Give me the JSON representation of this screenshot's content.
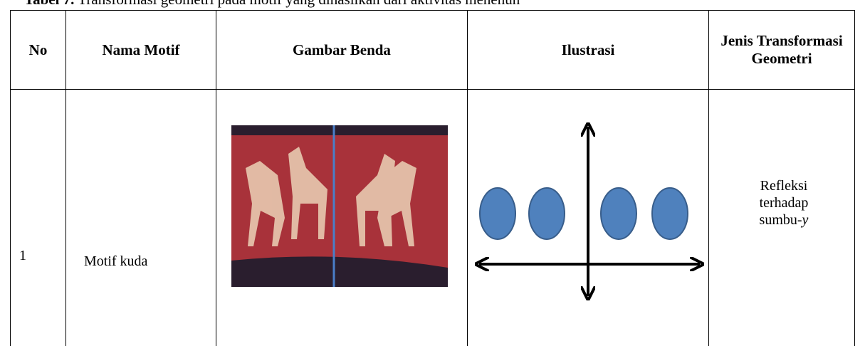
{
  "caption": {
    "label": "Tabel 7.",
    "text": "Transformasi geometri pada motif yang dihasilkan dari aktivitas menenun"
  },
  "table": {
    "headers": [
      "No",
      "Nama Motif",
      "Gambar Benda",
      "Ilustrasi",
      "Jenis Transformasi Geometri"
    ],
    "rows": [
      {
        "no": "1",
        "nama": "Motif kuda",
        "jenis": {
          "text": "Refleksi terhadap sumbu-",
          "variable": "y"
        }
      }
    ]
  }
}
